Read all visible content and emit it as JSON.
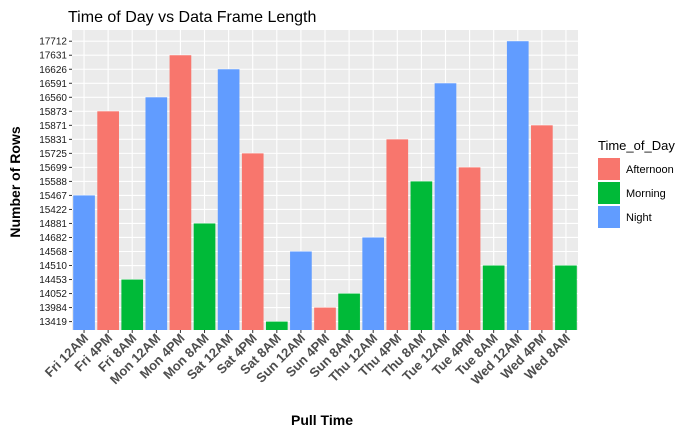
{
  "chart_data": {
    "type": "bar",
    "title": "Time of Day vs Data Frame Length",
    "xlabel": "Pull Time",
    "ylabel": "Number of Rows",
    "y_axis_kind": "discrete",
    "y_levels": [
      "13419",
      "13984",
      "14052",
      "14453",
      "14510",
      "14568",
      "14682",
      "14881",
      "15422",
      "15467",
      "15588",
      "15699",
      "15725",
      "15831",
      "15871",
      "15873",
      "16560",
      "16591",
      "16626",
      "17631",
      "17712"
    ],
    "categories": [
      "Fri 12AM",
      "Fri 4PM",
      "Fri 8AM",
      "Mon 12AM",
      "Mon 4PM",
      "Mon 8AM",
      "Sat 12AM",
      "Sat 4PM",
      "Sat 8AM",
      "Sun 12AM",
      "Sun 4PM",
      "Sun 8AM",
      "Thu 12AM",
      "Thu 4PM",
      "Thu 8AM",
      "Tue 12AM",
      "Tue 4PM",
      "Tue 8AM",
      "Wed 12AM",
      "Wed 4PM",
      "Wed 8AM"
    ],
    "values": [
      15467,
      15873,
      14453,
      16560,
      17631,
      14881,
      16626,
      15725,
      13419,
      14568,
      13984,
      14052,
      14682,
      15831,
      15588,
      16591,
      15699,
      14510,
      17712,
      15871,
      14510
    ],
    "groups": [
      "Night",
      "Afternoon",
      "Morning",
      "Night",
      "Afternoon",
      "Morning",
      "Night",
      "Afternoon",
      "Morning",
      "Night",
      "Afternoon",
      "Morning",
      "Night",
      "Afternoon",
      "Morning",
      "Night",
      "Afternoon",
      "Morning",
      "Night",
      "Afternoon",
      "Morning"
    ],
    "legend": {
      "title": "Time_of_Day",
      "position": "right",
      "entries": [
        {
          "name": "Afternoon",
          "color": "#F8766D"
        },
        {
          "name": "Morning",
          "color": "#00BA38"
        },
        {
          "name": "Night",
          "color": "#619CFF"
        }
      ]
    },
    "grid": true,
    "panel_background": "#EBEBEB"
  }
}
